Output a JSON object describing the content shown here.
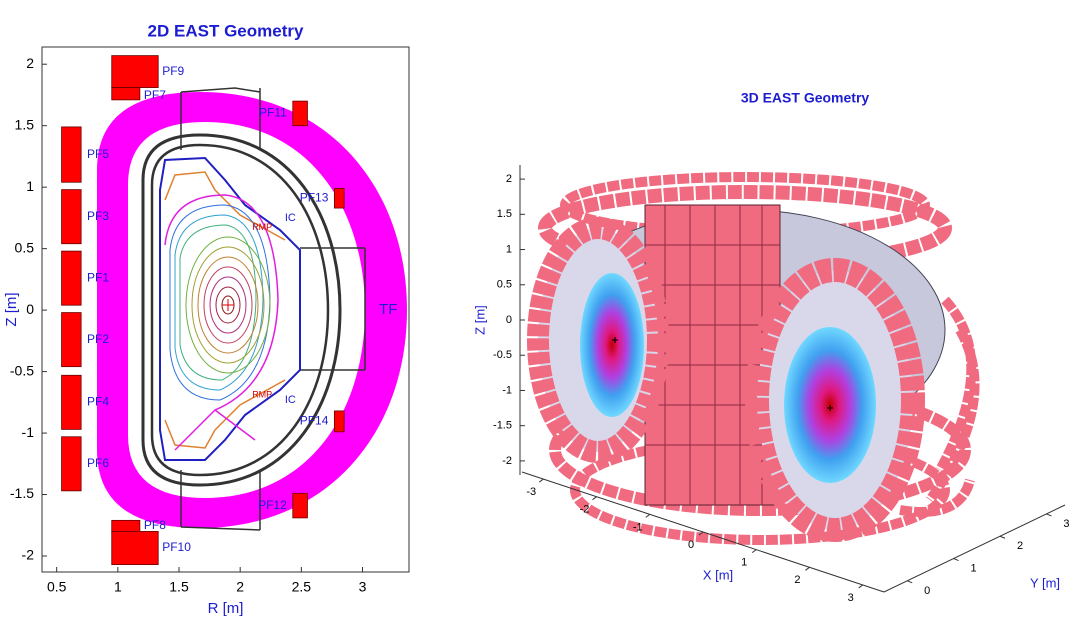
{
  "chart_data": [
    {
      "type": "geometry",
      "title": "2D EAST Geometry",
      "xlabel": "R [m]",
      "ylabel": "Z [m]",
      "xlim": [
        0.38,
        3.38
      ],
      "ylim": [
        -2.13,
        2.14
      ],
      "xticks": [
        0.5,
        1,
        1.5,
        2,
        2.5,
        3
      ],
      "yticks": [
        2,
        1.5,
        1,
        0.5,
        0,
        -0.5,
        -1,
        -1.5,
        -2
      ],
      "coil_color": "#ff0000",
      "coils": [
        {
          "label": "PF9",
          "r": [
            0.95,
            1.33
          ],
          "z": [
            1.81,
            2.07
          ]
        },
        {
          "label": "PF7",
          "r": [
            0.95,
            1.18
          ],
          "z": [
            1.71,
            1.81
          ]
        },
        {
          "label": "PF5",
          "r": [
            0.54,
            0.7
          ],
          "z": [
            1.04,
            1.49
          ]
        },
        {
          "label": "PF3",
          "r": [
            0.54,
            0.7
          ],
          "z": [
            0.54,
            0.98
          ]
        },
        {
          "label": "PF1",
          "r": [
            0.54,
            0.7
          ],
          "z": [
            0.04,
            0.48
          ]
        },
        {
          "label": "PF2",
          "r": [
            0.54,
            0.7
          ],
          "z": [
            -0.46,
            -0.02
          ]
        },
        {
          "label": "PF4",
          "r": [
            0.54,
            0.7
          ],
          "z": [
            -0.97,
            -0.53
          ]
        },
        {
          "label": "PF6",
          "r": [
            0.54,
            0.7
          ],
          "z": [
            -1.47,
            -1.03
          ]
        },
        {
          "label": "PF8",
          "r": [
            0.95,
            1.18
          ],
          "z": [
            -1.8,
            -1.71
          ]
        },
        {
          "label": "PF10",
          "r": [
            0.95,
            1.33
          ],
          "z": [
            -2.07,
            -1.8
          ]
        },
        {
          "label": "PF11",
          "r": [
            2.43,
            2.55
          ],
          "z": [
            1.5,
            1.7
          ]
        },
        {
          "label": "PF13",
          "r": [
            2.77,
            2.85
          ],
          "z": [
            0.83,
            0.99
          ]
        },
        {
          "label": "PF14",
          "r": [
            2.77,
            2.85
          ],
          "z": [
            -0.99,
            -0.82
          ]
        },
        {
          "label": "PF12",
          "r": [
            2.43,
            2.55
          ],
          "z": [
            -1.69,
            -1.49
          ]
        }
      ],
      "annotations": [
        {
          "text": "TF",
          "r": 3.21,
          "z": 0
        },
        {
          "text": "IC",
          "r": 2.41,
          "z": 0.75
        },
        {
          "text": "IC",
          "r": 2.41,
          "z": -0.73
        },
        {
          "text": "RMP",
          "r": 2.18,
          "z": 0.67
        },
        {
          "text": "RMP",
          "r": 2.18,
          "z": -0.69
        }
      ]
    },
    {
      "type": "isometric",
      "title": "3D EAST Geometry",
      "xlabel": "X [m]",
      "ylabel": "Y [m]",
      "zlabel": "Z [m]",
      "xlim": [
        -3.4,
        3.4
      ],
      "ylim": [
        -0.5,
        3.4
      ],
      "zlim": [
        -2.2,
        2.2
      ],
      "xticks": [
        -3,
        -2,
        -1,
        0,
        1,
        2,
        3
      ],
      "yticks": [
        0,
        1,
        2,
        3
      ],
      "zticks": [
        2,
        1.5,
        1,
        0.5,
        0,
        -0.5,
        -1,
        -1.5,
        -2
      ]
    }
  ]
}
